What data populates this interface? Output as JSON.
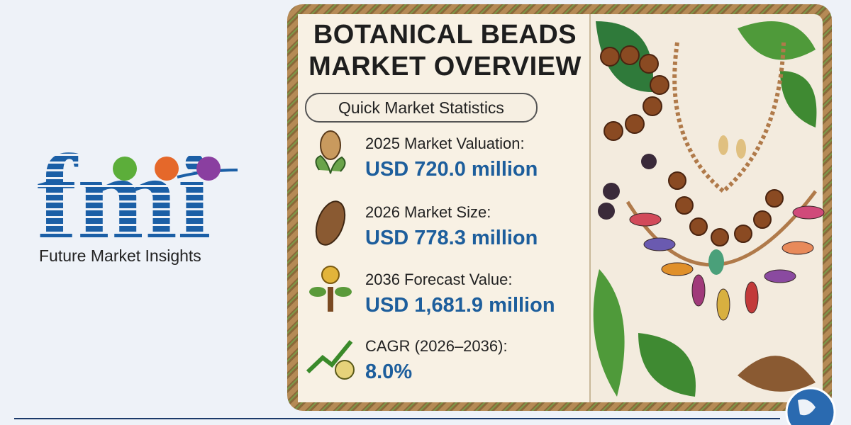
{
  "logo": {
    "mark": "fmi",
    "name": "Future Market Insights"
  },
  "header": {
    "title_lines": [
      "BOTANICAL BEADS",
      "MARKET OVERVIEW"
    ],
    "subtitle": "Quick Market Statistics"
  },
  "stats": [
    {
      "label": "2025 Market Valuation:",
      "value": "USD 720.0 million"
    },
    {
      "label": "2026 Market Size:",
      "value": "USD 778.3 million"
    },
    {
      "label": "2036 Forecast Value:",
      "value": "USD 1,681.9 million"
    },
    {
      "label": "CAGR (2026–2036):",
      "value": "8.0%"
    }
  ]
}
